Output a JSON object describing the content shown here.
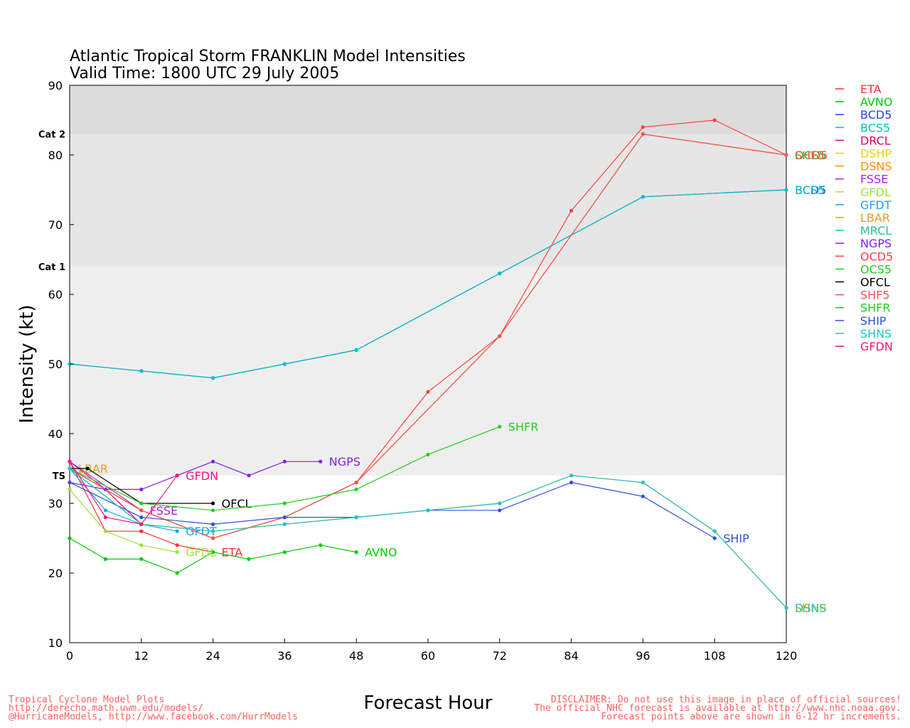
{
  "chart_data": {
    "type": "line",
    "title_line1": "Atlantic Tropical Storm FRANKLIN Model Intensities",
    "title_line2": "Valid Time: 1800 UTC 29 July 2005",
    "xlabel": "Forecast Hour",
    "ylabel": "Intensity (kt)",
    "xlim": [
      0,
      120
    ],
    "ylim": [
      10,
      90
    ],
    "xticks": [
      0,
      12,
      24,
      36,
      48,
      60,
      72,
      84,
      96,
      108,
      120
    ],
    "yticks": [
      10,
      20,
      30,
      40,
      50,
      60,
      70,
      80,
      90
    ],
    "bands": [
      {
        "from": 34,
        "to": 64,
        "color": "#eeeeee",
        "label": "TS",
        "label_value": 34
      },
      {
        "from": 64,
        "to": 83,
        "color": "#e6e6e6",
        "label": "Cat 1",
        "label_value": 64
      },
      {
        "from": 83,
        "to": 90,
        "color": "#dcdcdc",
        "label": "Cat 2",
        "label_value": 83
      }
    ],
    "legend_position": "right",
    "series": [
      {
        "name": "ETA",
        "color": "#ff3030",
        "label": "ETA",
        "x": [
          0,
          6,
          12,
          18,
          24
        ],
        "y": [
          36,
          26,
          26,
          24,
          23
        ]
      },
      {
        "name": "AVNO",
        "color": "#00cc00",
        "label": "AVNO",
        "x": [
          0,
          6,
          12,
          18,
          24,
          30,
          36,
          42,
          48
        ],
        "y": [
          25,
          22,
          22,
          20,
          23,
          22,
          23,
          24,
          23
        ]
      },
      {
        "name": "BCD5",
        "color": "#2040ff",
        "label": "BCD5",
        "x": [
          0,
          12,
          24,
          36,
          48,
          72,
          96,
          120
        ],
        "y": [
          50,
          49,
          48,
          50,
          52,
          63,
          74,
          75
        ]
      },
      {
        "name": "BCS5",
        "color": "#00c0c0",
        "label": "BCS5",
        "x": [
          0,
          12,
          24,
          36,
          48,
          72,
          96,
          120
        ],
        "y": [
          50,
          49,
          48,
          50,
          52,
          63,
          74,
          75
        ]
      },
      {
        "name": "DRCL",
        "color": "#e0006a",
        "label": "",
        "x": [
          0,
          6,
          12
        ],
        "y": [
          36,
          32,
          27
        ]
      },
      {
        "name": "DSHP",
        "color": "#e8d020",
        "label": "DSHP",
        "x": [
          0,
          12,
          24,
          36,
          48,
          60,
          72,
          84,
          96,
          108,
          120
        ],
        "y": [
          35,
          27,
          26,
          27,
          28,
          29,
          30,
          34,
          33,
          26,
          15
        ]
      },
      {
        "name": "DSNS",
        "color": "#ff8c00",
        "label": "DSNS",
        "x": [
          0,
          12,
          24,
          36,
          48,
          60,
          72,
          84,
          96,
          108,
          120
        ],
        "y": [
          35,
          27,
          26,
          27,
          28,
          29,
          30,
          34,
          33,
          26,
          15
        ]
      },
      {
        "name": "FSSE",
        "color": "#b020e0",
        "label": "FSSE",
        "x": [
          0,
          12
        ],
        "y": [
          36,
          29
        ]
      },
      {
        "name": "GFDL",
        "color": "#a0e040",
        "label": "GFDL",
        "x": [
          0,
          6,
          12,
          18
        ],
        "y": [
          32,
          26,
          24,
          23
        ]
      },
      {
        "name": "GFDT",
        "color": "#1ea0ff",
        "label": "GFDT",
        "x": [
          0,
          6,
          12,
          18
        ],
        "y": [
          35,
          29,
          27,
          26
        ]
      },
      {
        "name": "LBAR",
        "color": "#e0a020",
        "label": "LBAR",
        "x": [
          0
        ],
        "y": [
          35
        ]
      },
      {
        "name": "MRCL",
        "color": "#20c0a0",
        "label": "",
        "x": [
          0,
          12
        ],
        "y": [
          35,
          27
        ]
      },
      {
        "name": "NGPS",
        "color": "#8020e0",
        "label": "NGPS",
        "x": [
          0,
          6,
          12,
          18,
          24,
          30,
          36,
          42
        ],
        "y": [
          33,
          32,
          32,
          34,
          36,
          34,
          36,
          36
        ]
      },
      {
        "name": "OCD5",
        "color": "#ff4040",
        "label": "OCD5",
        "x": [
          0,
          12,
          24,
          36,
          48,
          60,
          72,
          84,
          96,
          108,
          120
        ],
        "y": [
          35,
          29,
          25,
          28,
          33,
          46,
          54,
          72,
          84,
          85,
          80
        ]
      },
      {
        "name": "OCS5",
        "color": "#20d020",
        "label": "OCS5",
        "x": [
          0,
          12,
          24,
          36,
          48,
          72,
          96,
          120
        ],
        "y": [
          35,
          29,
          25,
          28,
          33,
          54,
          83,
          80
        ]
      },
      {
        "name": "OFCL",
        "color": "#000000",
        "label": "OFCL",
        "x": [
          0,
          3,
          12,
          24
        ],
        "y": [
          35,
          35,
          30,
          30
        ]
      },
      {
        "name": "SHF5",
        "color": "#ff5050",
        "label": "SHF5",
        "x": [
          0,
          12,
          24,
          36,
          48,
          72,
          96,
          120
        ],
        "y": [
          35,
          29,
          25,
          28,
          33,
          54,
          83,
          80
        ]
      },
      {
        "name": "SHFR",
        "color": "#20d020",
        "label": "SHFR",
        "x": [
          0,
          12,
          24,
          36,
          48,
          60,
          72
        ],
        "y": [
          35,
          30,
          29,
          30,
          32,
          37,
          41
        ]
      },
      {
        "name": "SHIP",
        "color": "#3050e0",
        "label": "SHIP",
        "x": [
          0,
          12,
          24,
          36,
          48,
          60,
          72,
          84,
          96,
          108
        ],
        "y": [
          33,
          28,
          27,
          28,
          28,
          29,
          29,
          33,
          31,
          25
        ]
      },
      {
        "name": "SHNS",
        "color": "#20c8c8",
        "label": "SHNS",
        "x": [
          0,
          12,
          24,
          36,
          48,
          60,
          72,
          84,
          96,
          108,
          120
        ],
        "y": [
          35,
          27,
          26,
          27,
          28,
          29,
          30,
          34,
          33,
          26,
          15
        ]
      },
      {
        "name": "GFDN",
        "color": "#ff1080",
        "label": "GFDN",
        "x": [
          0,
          6,
          12,
          18
        ],
        "y": [
          36,
          28,
          27,
          34
        ]
      }
    ]
  },
  "footer": {
    "left_line1": "Tropical Cyclone Model Plots",
    "left_line2": "http://derecho.math.uwm.edu/models/",
    "left_line3": "@HurricaneModels, http://www.facebook.com/HurrModels",
    "right_line1": "DISCLAIMER: Do not use this image in place of official sources!",
    "right_line2": "The official NHC forecast is available at http://www.nhc.noaa.gov.",
    "right_line3": "Forecast points above are shown in 6-12 hr increments.",
    "color": "#ff6060"
  }
}
